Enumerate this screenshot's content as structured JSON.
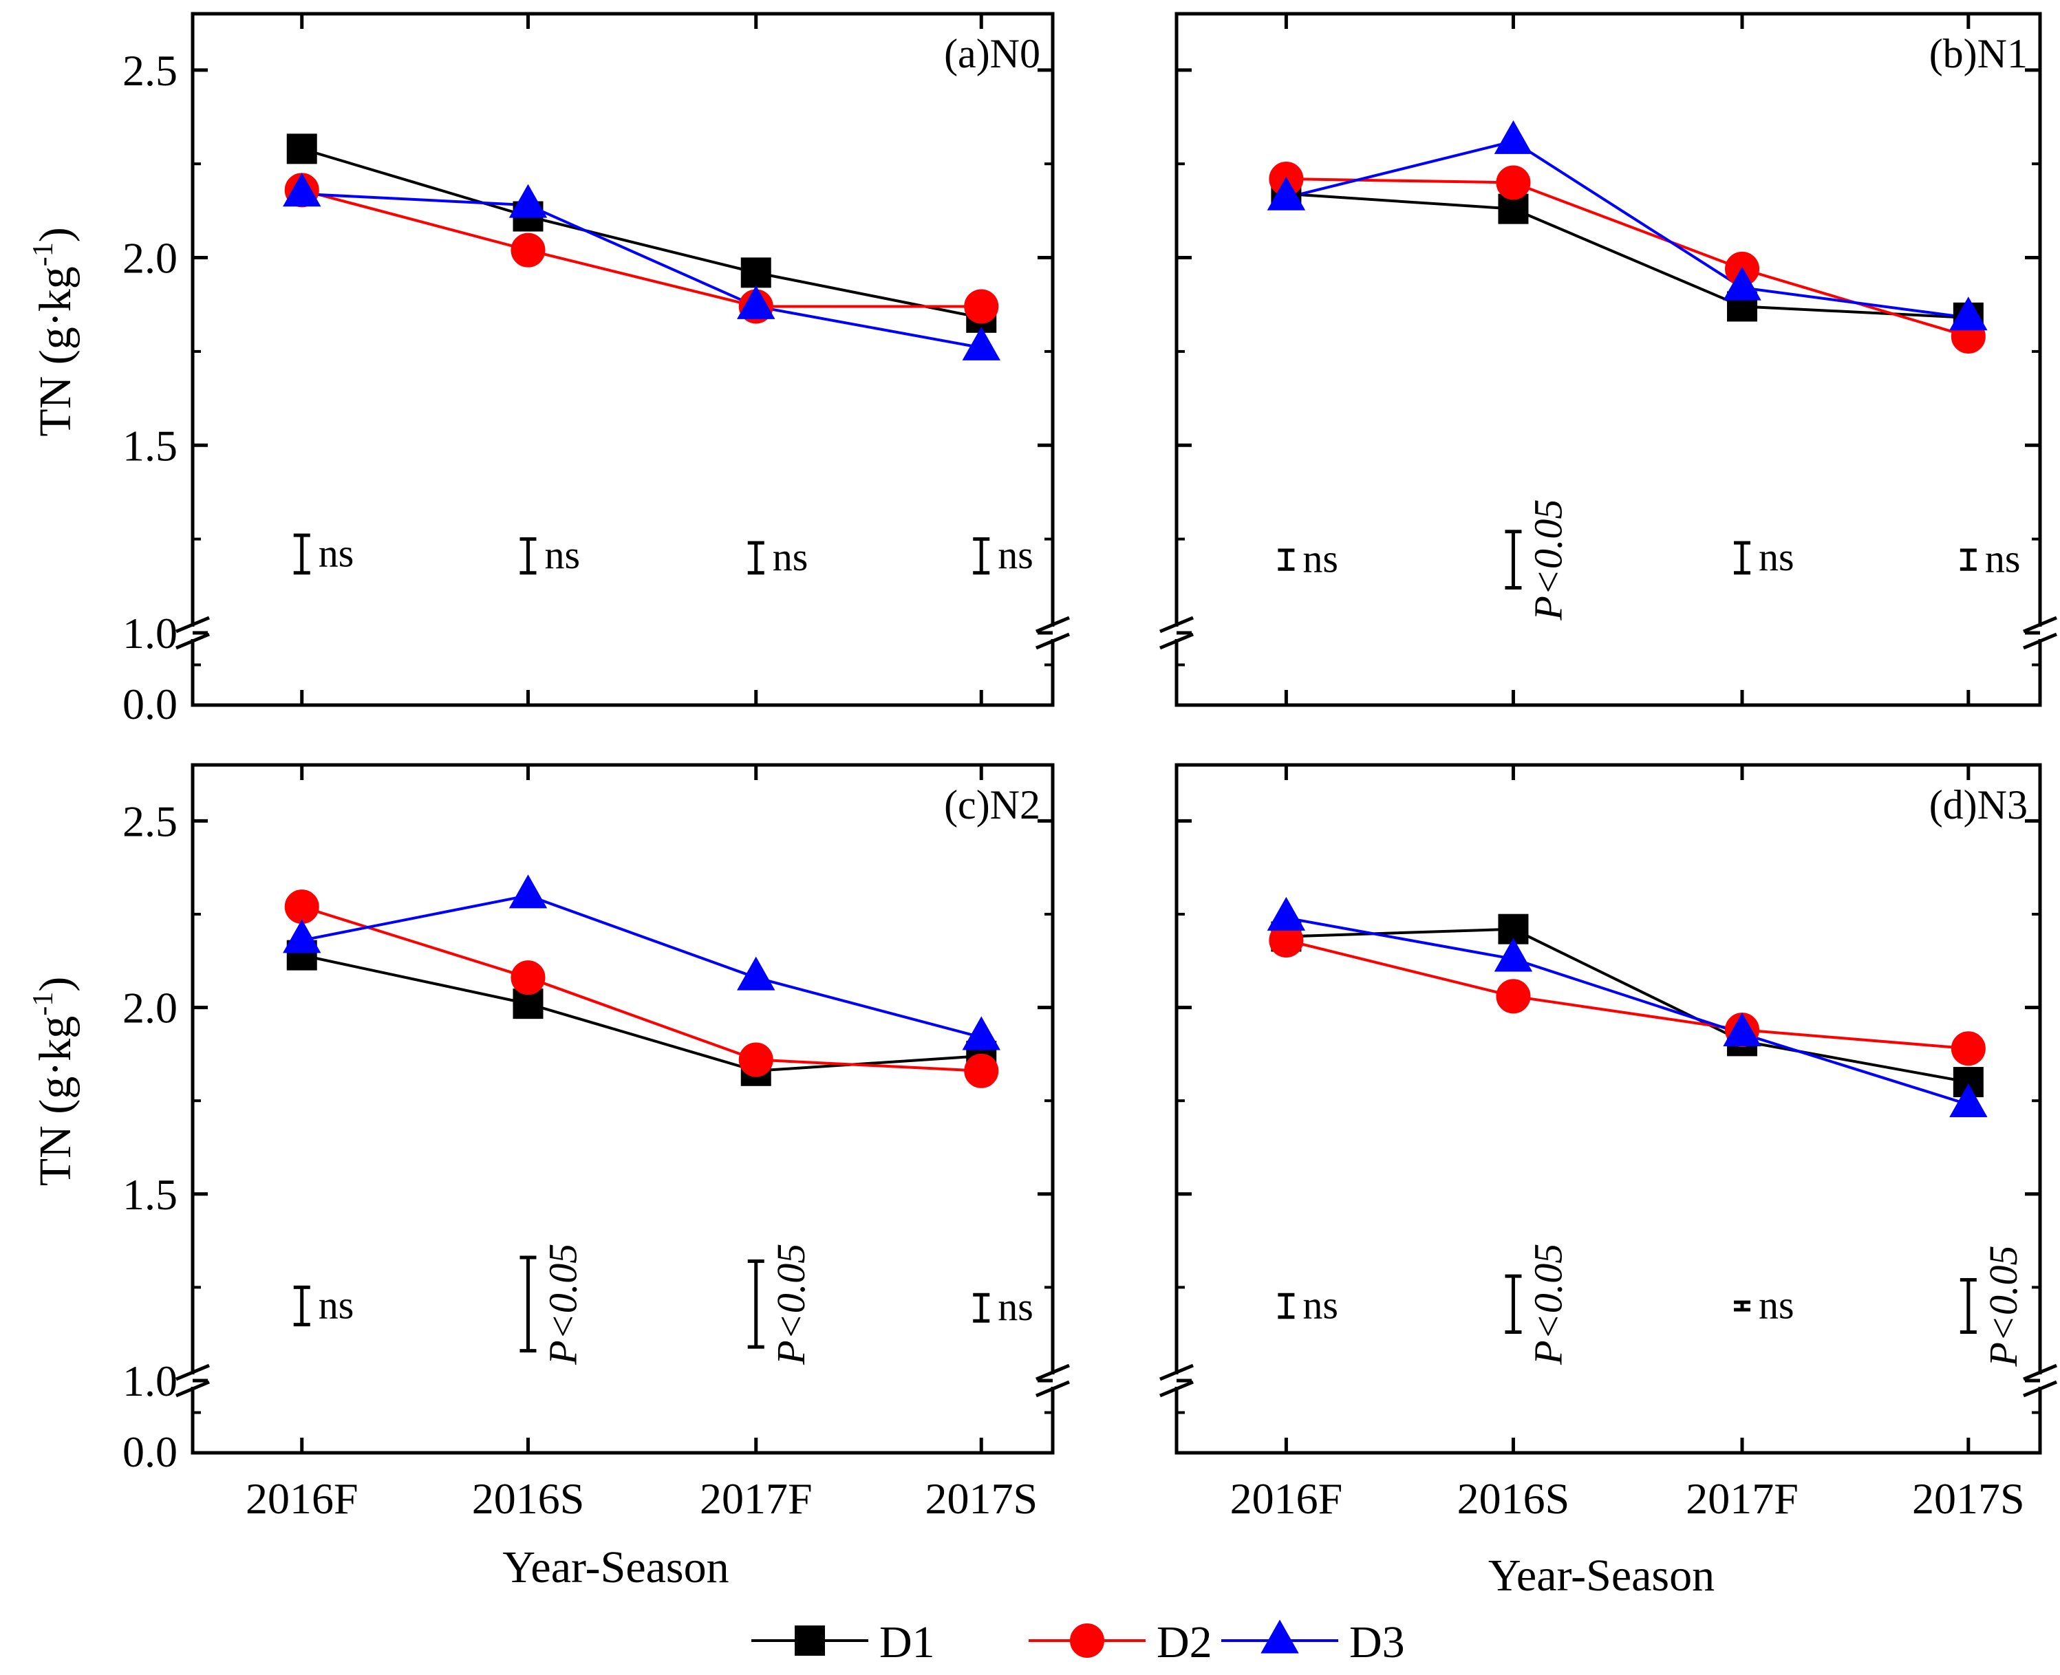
{
  "chart_data": {
    "type": "line",
    "x_title": "Year-Season",
    "y_title": {
      "main": "TN (g·kg",
      "sup": "-1",
      "close": ")"
    },
    "y_ticks": [
      {
        "value": 2.5,
        "label": "2.5"
      },
      {
        "value": 2.0,
        "label": "2.0"
      },
      {
        "value": 1.5,
        "label": "1.5"
      },
      {
        "value": 1.0,
        "label": "1.0"
      }
    ],
    "y_break_tick": "0.0",
    "ylim": [
      1.0,
      2.65
    ],
    "categories": [
      "2016F",
      "2016S",
      "2017F",
      "2017S"
    ],
    "series_styles": [
      {
        "name": "D1",
        "color": "#000000",
        "marker": "square"
      },
      {
        "name": "D2",
        "color": "#ff0000",
        "marker": "circle"
      },
      {
        "name": "D3",
        "color": "#0000ff",
        "marker": "triangle"
      }
    ],
    "legend": {
      "placement": "bottom-center",
      "entries": [
        "D1",
        "D2",
        "D3"
      ]
    },
    "panels": [
      {
        "id": "a",
        "label": "(a)N0",
        "series": [
          {
            "name": "D1",
            "values": [
              2.29,
              2.11,
              1.96,
              1.84
            ]
          },
          {
            "name": "D2",
            "values": [
              2.18,
              2.02,
              1.87,
              1.87
            ]
          },
          {
            "name": "D3",
            "values": [
              2.17,
              2.14,
              1.87,
              1.76
            ]
          }
        ],
        "significance": [
          {
            "label": "ns",
            "low": 1.16,
            "high": 1.26,
            "rotated": false
          },
          {
            "label": "ns",
            "low": 1.16,
            "high": 1.25,
            "rotated": false
          },
          {
            "label": "ns",
            "low": 1.16,
            "high": 1.24,
            "rotated": false
          },
          {
            "label": "ns",
            "low": 1.16,
            "high": 1.25,
            "rotated": false
          }
        ]
      },
      {
        "id": "b",
        "label": "(b)N1",
        "series": [
          {
            "name": "D1",
            "values": [
              2.17,
              2.13,
              1.87,
              1.84
            ]
          },
          {
            "name": "D2",
            "values": [
              2.21,
              2.2,
              1.97,
              1.79
            ]
          },
          {
            "name": "D3",
            "values": [
              2.16,
              2.31,
              1.92,
              1.84
            ]
          }
        ],
        "significance": [
          {
            "label": "ns",
            "low": 1.17,
            "high": 1.22,
            "rotated": false
          },
          {
            "label": "P<0.05",
            "low": 1.12,
            "high": 1.27,
            "rotated": true
          },
          {
            "label": "ns",
            "low": 1.16,
            "high": 1.24,
            "rotated": false
          },
          {
            "label": "ns",
            "low": 1.17,
            "high": 1.22,
            "rotated": false
          }
        ]
      },
      {
        "id": "c",
        "label": "(c)N2",
        "series": [
          {
            "name": "D1",
            "values": [
              2.14,
              2.01,
              1.83,
              1.87
            ]
          },
          {
            "name": "D2",
            "values": [
              2.27,
              2.08,
              1.86,
              1.83
            ]
          },
          {
            "name": "D3",
            "values": [
              2.18,
              2.3,
              2.08,
              1.92
            ]
          }
        ],
        "significance": [
          {
            "label": "ns",
            "low": 1.15,
            "high": 1.25,
            "rotated": false
          },
          {
            "label": "P<0.05",
            "low": 1.08,
            "high": 1.33,
            "rotated": true
          },
          {
            "label": "P<0.05",
            "low": 1.09,
            "high": 1.32,
            "rotated": true
          },
          {
            "label": "ns",
            "low": 1.16,
            "high": 1.23,
            "rotated": false
          }
        ]
      },
      {
        "id": "d",
        "label": "(d)N3",
        "series": [
          {
            "name": "D1",
            "values": [
              2.19,
              2.21,
              1.91,
              1.8
            ]
          },
          {
            "name": "D2",
            "values": [
              2.18,
              2.03,
              1.94,
              1.89
            ]
          },
          {
            "name": "D3",
            "values": [
              2.24,
              2.13,
              1.93,
              1.74
            ]
          }
        ],
        "significance": [
          {
            "label": "ns",
            "low": 1.17,
            "high": 1.23,
            "rotated": false
          },
          {
            "label": "P<0.05",
            "low": 1.13,
            "high": 1.28,
            "rotated": true
          },
          {
            "label": "ns",
            "low": 1.19,
            "high": 1.21,
            "rotated": false
          },
          {
            "label": "P<0.05",
            "low": 1.13,
            "high": 1.27,
            "rotated": true
          }
        ]
      }
    ]
  }
}
